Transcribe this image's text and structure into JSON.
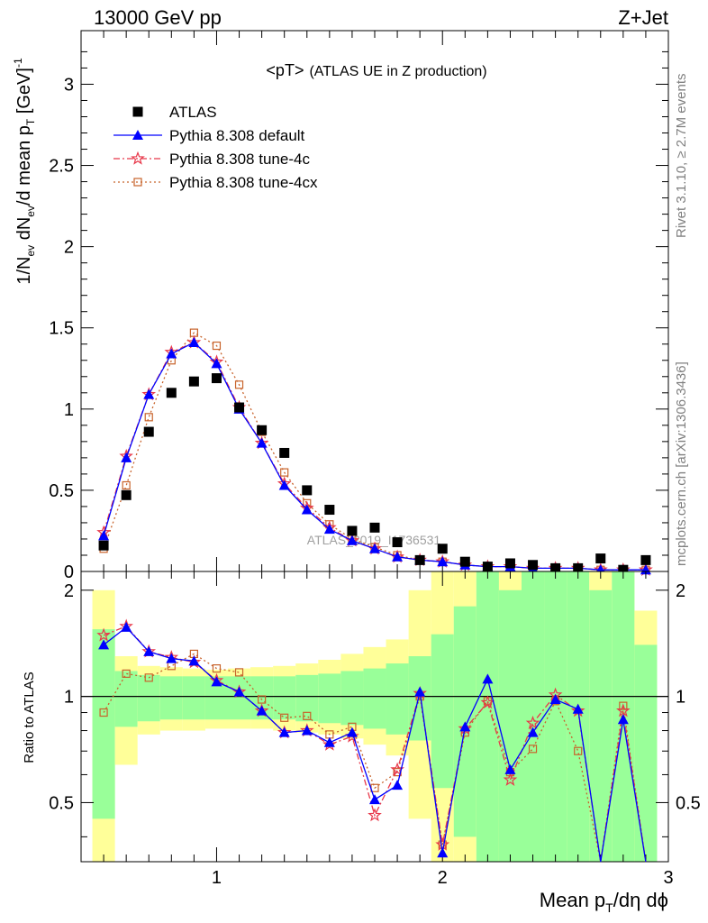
{
  "header": {
    "left": "13000 GeV pp",
    "right": "Z+Jet"
  },
  "side_labels": {
    "rivet": "Rivet 3.1.10, ≥ 2.7M events",
    "mcplots": "mcplots.cern.ch [arXiv:1306.3436]"
  },
  "watermark": "ATLAS_2019_I1736531",
  "colors": {
    "atlas": "#000000",
    "default": "#0000ff",
    "tune4c": "#e8384a",
    "tune4cx": "#c8632b",
    "band_inner": "#99ff99",
    "band_outer": "#ffff99"
  },
  "chart_data": [
    {
      "type": "scatter",
      "title": "<pT>",
      "title_suffix": "(ATLAS UE in Z production)",
      "ylabel_parts": [
        "1/N",
        "ev",
        " dN",
        "ev",
        "/d mean p",
        "T",
        " [GeV]",
        "-1"
      ],
      "xlim": [
        0.4,
        3.0
      ],
      "ylim": [
        0,
        3.33
      ],
      "y_ticks": [
        "0",
        "0.5",
        "1",
        "1.5",
        "2",
        "2.5",
        "3"
      ],
      "y_tick_values": [
        0,
        0.5,
        1,
        1.5,
        2,
        2.5,
        3
      ],
      "x": [
        0.5,
        0.6,
        0.7,
        0.8,
        0.9,
        1.0,
        1.1,
        1.2,
        1.3,
        1.4,
        1.5,
        1.6,
        1.7,
        1.8,
        1.9,
        2.0,
        2.1,
        2.2,
        2.3,
        2.4,
        2.5,
        2.6,
        2.7,
        2.8,
        2.9
      ],
      "legend": [
        {
          "label": "ATLAS",
          "series": "atlas"
        },
        {
          "label": "Pythia 8.308 default",
          "series": "default"
        },
        {
          "label": "Pythia 8.308 tune-4c",
          "series": "tune4c"
        },
        {
          "label": "Pythia 8.308 tune-4cx",
          "series": "tune4cx"
        }
      ],
      "series": [
        {
          "key": "atlas",
          "name": "ATLAS",
          "values": [
            0.16,
            0.47,
            0.86,
            1.1,
            1.17,
            1.19,
            1.01,
            0.87,
            0.73,
            0.5,
            0.38,
            0.25,
            0.27,
            0.18,
            0.07,
            0.14,
            0.06,
            0.03,
            0.05,
            0.04,
            0.02,
            0.02,
            0.08,
            0.01,
            0.07
          ]
        },
        {
          "key": "default",
          "name": "Pythia 8.308 default",
          "values": [
            0.22,
            0.7,
            1.09,
            1.34,
            1.41,
            1.28,
            1.0,
            0.79,
            0.53,
            0.38,
            0.26,
            0.19,
            0.14,
            0.09,
            0.07,
            0.06,
            0.04,
            0.03,
            0.03,
            0.02,
            0.02,
            0.02,
            0.01,
            0.01,
            0.01
          ]
        },
        {
          "key": "tune4c",
          "name": "Pythia 8.308 tune-4c",
          "values": [
            0.24,
            0.71,
            1.09,
            1.35,
            1.41,
            1.29,
            1.01,
            0.79,
            0.54,
            0.39,
            0.27,
            0.19,
            0.14,
            0.09,
            0.07,
            0.06,
            0.04,
            0.03,
            0.03,
            0.02,
            0.02,
            0.02,
            0.01,
            0.01,
            0.01
          ]
        },
        {
          "key": "tune4cx",
          "name": "Pythia 8.308 tune-4cx",
          "values": [
            0.14,
            0.53,
            0.95,
            1.3,
            1.47,
            1.39,
            1.15,
            0.86,
            0.61,
            0.42,
            0.29,
            0.2,
            0.15,
            0.1,
            0.07,
            0.06,
            0.04,
            0.03,
            0.03,
            0.02,
            0.02,
            0.02,
            0.01,
            0.01,
            0.01
          ]
        }
      ]
    },
    {
      "type": "line",
      "ylabel": "Ratio to ATLAS",
      "xlabel_parts": [
        "Mean p",
        "T",
        "/dη dϕ"
      ],
      "xlim": [
        0.4,
        3.0
      ],
      "ylim": [
        0.34,
        2.26
      ],
      "x_ticks": [
        "1",
        "2",
        "3"
      ],
      "x_tick_values": [
        1,
        2,
        3
      ],
      "y_ticks": [
        "0.5",
        "1",
        "2"
      ],
      "y_tick_values": [
        0.5,
        1,
        2
      ],
      "reference": 1,
      "x": [
        0.5,
        0.6,
        0.7,
        0.8,
        0.9,
        1.0,
        1.1,
        1.2,
        1.3,
        1.4,
        1.5,
        1.6,
        1.7,
        1.8,
        1.9,
        2.0,
        2.1,
        2.2,
        2.3,
        2.4,
        2.5,
        2.6,
        2.7,
        2.8,
        2.9
      ],
      "band_inner": {
        "low": [
          0.45,
          0.82,
          0.85,
          0.86,
          0.86,
          0.86,
          0.86,
          0.86,
          0.86,
          0.85,
          0.84,
          0.83,
          0.81,
          0.78,
          0.75,
          0.55,
          0.4,
          0.34,
          0.34,
          0.34,
          0.34,
          0.34,
          0.34,
          0.34,
          0.34
        ],
        "high": [
          1.55,
          1.18,
          1.15,
          1.14,
          1.14,
          1.14,
          1.14,
          1.14,
          1.14,
          1.15,
          1.16,
          1.18,
          1.2,
          1.24,
          1.3,
          1.5,
          1.8,
          2.26,
          2.0,
          2.26,
          2.26,
          2.26,
          2.0,
          2.26,
          1.4
        ]
      },
      "band_outer": {
        "low": [
          0.34,
          0.64,
          0.78,
          0.8,
          0.8,
          0.81,
          0.81,
          0.81,
          0.8,
          0.79,
          0.78,
          0.76,
          0.73,
          0.68,
          0.45,
          0.34,
          0.34,
          0.34,
          0.34,
          0.34,
          0.34,
          0.34,
          0.34,
          0.34,
          0.34
        ],
        "high": [
          2.0,
          1.3,
          1.22,
          1.21,
          1.2,
          1.19,
          1.2,
          1.21,
          1.22,
          1.24,
          1.27,
          1.32,
          1.38,
          1.45,
          2.0,
          2.26,
          2.26,
          2.26,
          2.26,
          2.26,
          2.26,
          2.26,
          2.26,
          2.26,
          1.75
        ]
      },
      "series": [
        {
          "key": "default",
          "name": "Pythia 8.308 default",
          "values": [
            1.4,
            1.57,
            1.34,
            1.28,
            1.26,
            1.1,
            1.03,
            0.91,
            0.79,
            0.8,
            0.74,
            0.79,
            0.51,
            0.56,
            1.03,
            0.36,
            0.82,
            1.12,
            0.62,
            0.79,
            0.98,
            0.92,
            0.15,
            0.86,
            0.2
          ]
        },
        {
          "key": "tune4c",
          "name": "Pythia 8.308 tune-4c",
          "values": [
            1.49,
            1.58,
            1.34,
            1.29,
            1.25,
            1.11,
            1.03,
            0.91,
            0.79,
            0.8,
            0.73,
            0.77,
            0.46,
            0.62,
            1.02,
            0.38,
            0.81,
            0.96,
            0.58,
            0.84,
            1.01,
            0.91,
            0.16,
            0.91,
            0.2
          ]
        },
        {
          "key": "tune4cx",
          "name": "Pythia 8.308 tune-4cx",
          "values": [
            0.9,
            1.16,
            1.13,
            1.22,
            1.32,
            1.2,
            1.17,
            0.98,
            0.87,
            0.88,
            0.78,
            0.82,
            0.55,
            0.61,
            1.0,
            0.38,
            0.79,
            0.97,
            0.61,
            0.71,
            0.97,
            0.7,
            0.16,
            0.94,
            0.2
          ]
        }
      ]
    }
  ]
}
